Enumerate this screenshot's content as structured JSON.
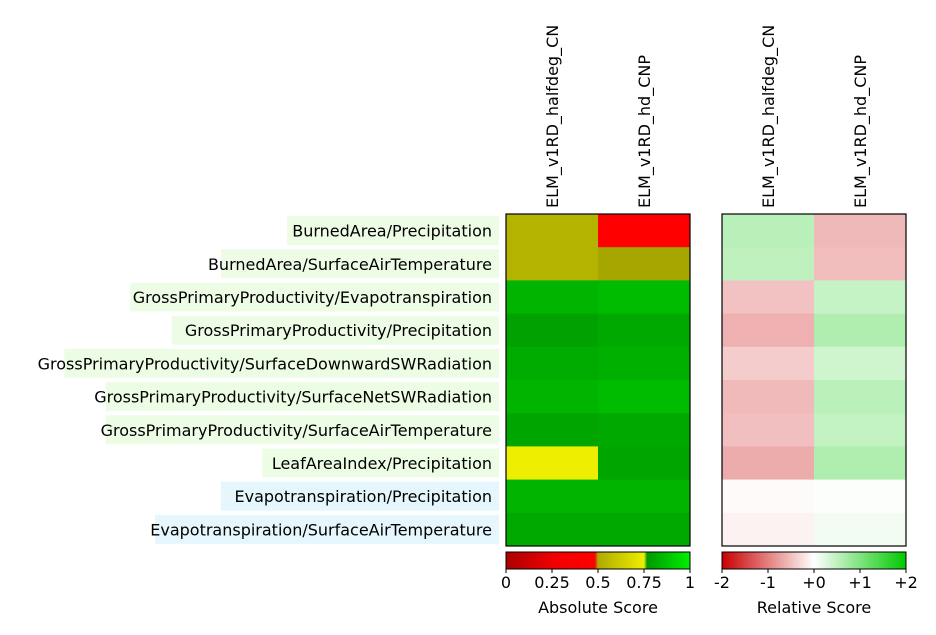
{
  "chart_data": {
    "type": "heatmap",
    "rows": [
      {
        "label": "BurnedArea/Precipitation",
        "bg": "#edfde5"
      },
      {
        "label": "BurnedArea/SurfaceAirTemperature",
        "bg": "#edfde5"
      },
      {
        "label": "GrossPrimaryProductivity/Evapotranspiration",
        "bg": "#edfde5"
      },
      {
        "label": "GrossPrimaryProductivity/Precipitation",
        "bg": "#edfde5"
      },
      {
        "label": "GrossPrimaryProductivity/SurfaceDownwardSWRadiation",
        "bg": "#edfde5"
      },
      {
        "label": "GrossPrimaryProductivity/SurfaceNetSWRadiation",
        "bg": "#edfde5"
      },
      {
        "label": "GrossPrimaryProductivity/SurfaceAirTemperature",
        "bg": "#edfde5"
      },
      {
        "label": "LeafAreaIndex/Precipitation",
        "bg": "#edfde5"
      },
      {
        "label": "Evapotranspiration/Precipitation",
        "bg": "#e5f7fd"
      },
      {
        "label": "Evapotranspiration/SurfaceAirTemperature",
        "bg": "#e5f7fd"
      }
    ],
    "models": [
      "ELM_v1RD_halfdeg_CN",
      "ELM_v1RD_hd_CNP"
    ],
    "absolute": {
      "title": "Absolute Score",
      "range": [
        0,
        1
      ],
      "ticks": [
        "0",
        "0.25",
        "0.5",
        "0.75",
        "1"
      ],
      "values": [
        [
          0.58,
          0.45
        ],
        [
          0.58,
          0.6
        ],
        [
          0.84,
          0.86
        ],
        [
          0.79,
          0.81
        ],
        [
          0.82,
          0.83
        ],
        [
          0.84,
          0.86
        ],
        [
          0.8,
          0.81
        ],
        [
          0.66,
          0.8
        ],
        [
          0.84,
          0.84
        ],
        [
          0.81,
          0.81
        ]
      ]
    },
    "relative": {
      "title": "Relative Score",
      "range": [
        -2,
        2
      ],
      "ticks": [
        "-2",
        "-1",
        "+0",
        "+1",
        "+2"
      ],
      "values": [
        [
          0.55,
          -0.55
        ],
        [
          0.5,
          -0.52
        ],
        [
          -0.48,
          0.45
        ],
        [
          -0.62,
          0.62
        ],
        [
          -0.4,
          0.38
        ],
        [
          -0.54,
          0.54
        ],
        [
          -0.5,
          0.48
        ],
        [
          -0.65,
          0.62
        ],
        [
          -0.04,
          0.03
        ],
        [
          -0.1,
          0.1
        ]
      ]
    }
  }
}
